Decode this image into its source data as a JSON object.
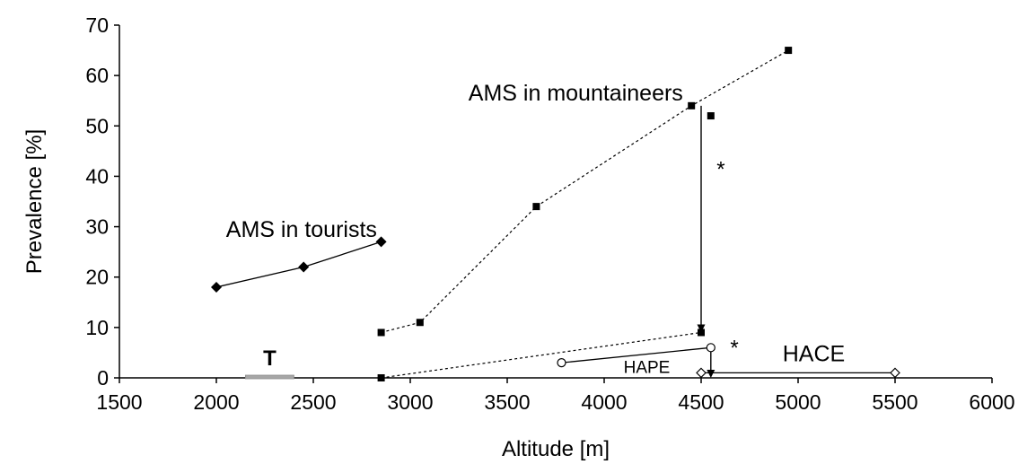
{
  "chart_data": {
    "type": "scatter",
    "xlabel": "Altitude [m]",
    "ylabel": "Prevalence [%]",
    "xlim": [
      1500,
      6000
    ],
    "ylim": [
      0,
      70
    ],
    "x_ticks": [
      "1500",
      "2000",
      "2500",
      "3000",
      "3500",
      "4000",
      "4500",
      "5000",
      "5500",
      "6000"
    ],
    "y_ticks": [
      "0",
      "10",
      "20",
      "30",
      "40",
      "50",
      "60",
      "70"
    ],
    "grid": false,
    "series": [
      {
        "name": "AMS in tourists",
        "marker": "diamond-filled",
        "line": "solid",
        "x": [
          2000,
          2450,
          2850
        ],
        "y": [
          18,
          22,
          27
        ]
      },
      {
        "name": "AMS in mountaineers",
        "marker": "square-filled",
        "line": "dotted",
        "x": [
          2850,
          3050,
          3650,
          4450,
          4950
        ],
        "y": [
          9,
          11,
          34,
          54,
          65
        ]
      },
      {
        "name": "",
        "marker": "square-filled",
        "line": "none",
        "x": [
          4550
        ],
        "y": [
          52
        ]
      },
      {
        "name": "",
        "marker": "square-filled",
        "line": "dotted",
        "x": [
          2850,
          4500
        ],
        "y": [
          0,
          9
        ]
      },
      {
        "name": "HAPE",
        "marker": "circle-open",
        "line": "solid",
        "x": [
          3780,
          4550
        ],
        "y": [
          3,
          6
        ]
      },
      {
        "name": "HACE",
        "marker": "diamond-open",
        "line": "solid",
        "x": [
          4500,
          5500
        ],
        "y": [
          1,
          1
        ]
      }
    ],
    "arrows": [
      {
        "from": [
          4500,
          54
        ],
        "to": [
          4500,
          9
        ],
        "label": "*"
      },
      {
        "from": [
          4550,
          6
        ],
        "to": [
          4550,
          0
        ],
        "label": "*"
      }
    ],
    "range_bar": {
      "label": "T",
      "from": 2150,
      "to": 2400,
      "y": 0
    },
    "annotations": [
      {
        "text": "AMS in tourists",
        "x": 2050,
        "y": 28,
        "size": 25
      },
      {
        "text": "AMS in mountaineers",
        "x": 3300,
        "y": 55,
        "size": 25
      },
      {
        "text": "HAPE",
        "x": 4100,
        "y": 1,
        "size": 19
      },
      {
        "text": "HACE",
        "x": 4920,
        "y": 3.3,
        "size": 25
      },
      {
        "text": "*",
        "x": 4580,
        "y": 40,
        "size": 24
      },
      {
        "text": "*",
        "x": 4650,
        "y": 4.5,
        "size": 24
      }
    ]
  }
}
